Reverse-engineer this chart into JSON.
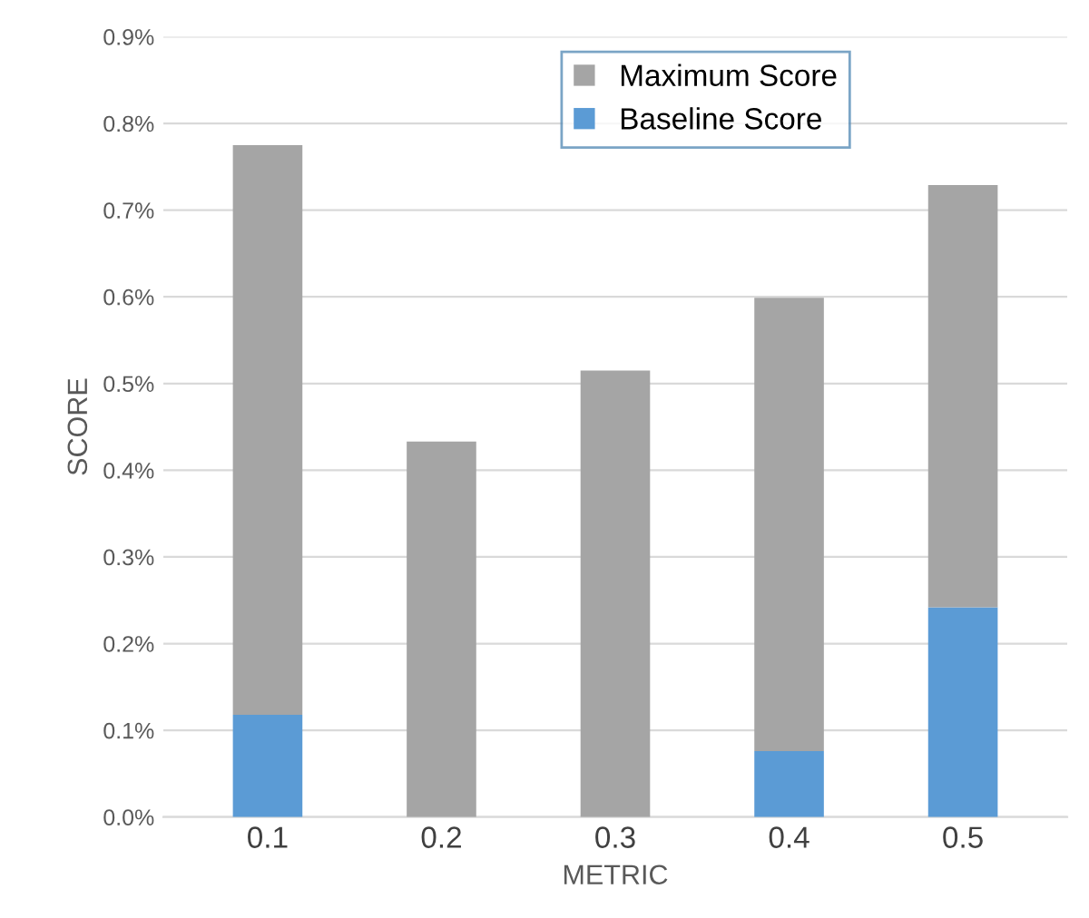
{
  "chart_data": {
    "type": "bar",
    "stacked": true,
    "xlabel": "METRIC",
    "ylabel": "SCORE",
    "categories": [
      "0.1",
      "0.2",
      "0.3",
      "0.4",
      "0.5"
    ],
    "series": [
      {
        "name": "Baseline Score",
        "color": "#5b9bd5",
        "values": [
          0.118,
          0,
          0,
          0.076,
          0.242
        ]
      },
      {
        "name": "Maximum Score",
        "color": "#a5a5a5",
        "values": [
          0.657,
          0.433,
          0.515,
          0.523,
          0.487
        ]
      }
    ],
    "ylim": [
      0,
      0.9
    ],
    "yticks": [
      {
        "value": 0,
        "label": "0.0%"
      },
      {
        "value": 0.1,
        "label": "0.1%"
      },
      {
        "value": 0.2,
        "label": "0.2%"
      },
      {
        "value": 0.3,
        "label": "0.3%"
      },
      {
        "value": 0.4,
        "label": "0.4%"
      },
      {
        "value": 0.5,
        "label": "0.5%"
      },
      {
        "value": 0.6,
        "label": "0.6%"
      },
      {
        "value": 0.7,
        "label": "0.7%"
      },
      {
        "value": 0.8,
        "label": "0.8%"
      },
      {
        "value": 0.9,
        "label": "0.9%"
      }
    ],
    "grid": "y",
    "legend": "top"
  }
}
